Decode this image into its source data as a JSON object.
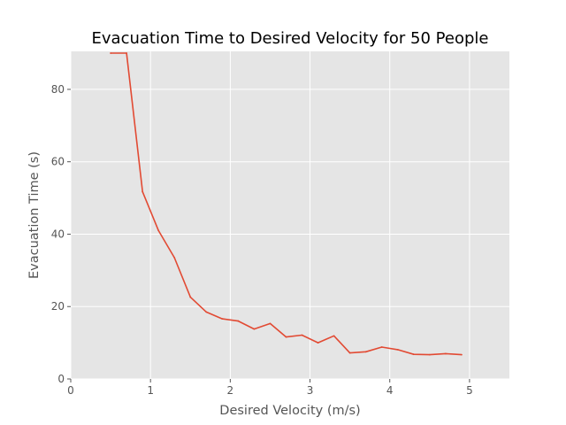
{
  "chart_data": {
    "type": "line",
    "title": "Evacuation Time to Desired Velocity for 50 People",
    "xlabel": "Desired Velocity (m/s)",
    "ylabel": "Evacuation Time (s)",
    "xlim": [
      0,
      5.5
    ],
    "ylim": [
      0,
      90.5
    ],
    "xticks": [
      0,
      1,
      2,
      3,
      4,
      5
    ],
    "yticks": [
      0,
      20,
      40,
      60,
      80
    ],
    "grid": true,
    "style": "ggplot",
    "colors": {
      "plot_background": "#e5e5e5",
      "grid": "#ffffff",
      "line": "#e24a33",
      "text": "#555555"
    },
    "series": [
      {
        "x": [
          0.5,
          0.7,
          0.9,
          1.1,
          1.3,
          1.5,
          1.7,
          1.9,
          2.1,
          2.3,
          2.5,
          2.7,
          2.9,
          3.1,
          3.3,
          3.5,
          3.7,
          3.9,
          4.1,
          4.3,
          4.5,
          4.7,
          4.9
        ],
        "values": [
          90,
          90,
          51.7,
          41,
          33.5,
          22.6,
          18.5,
          16.6,
          16,
          13.8,
          15.3,
          11.6,
          12.1,
          10,
          11.9,
          7.2,
          7.5,
          8.8,
          8.1,
          6.8,
          6.7,
          7,
          6.7
        ]
      }
    ]
  }
}
